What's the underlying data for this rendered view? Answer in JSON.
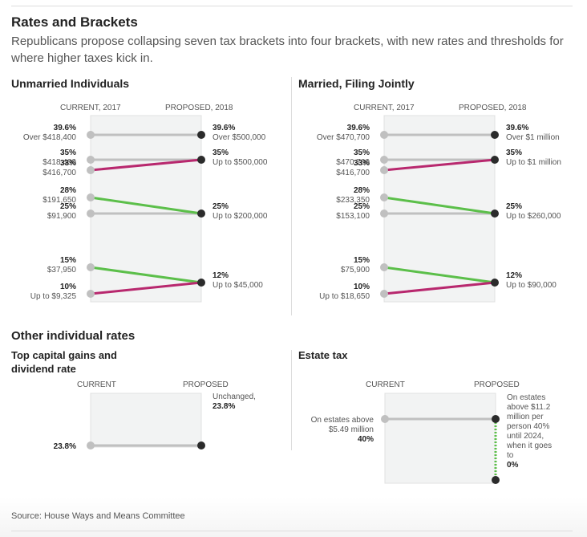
{
  "title": "Rates and Brackets",
  "dek": "Republicans propose collapsing seven tax brackets into four brackets, with new rates and thresholds for where higher taxes kick in.",
  "colors": {
    "up": "#b8286e",
    "down": "#5cbf4a",
    "flat": "#c0c0c0",
    "current_dot": "#c0c0c0",
    "proposed_dot": "#2b2b2b",
    "band": "#f2f3f3"
  },
  "chart_data": [
    {
      "type": "line",
      "title": "Unmarried Individuals",
      "col_current": "CURRENT, 2017",
      "col_proposed": "PROPOSED, 2018",
      "ylim": [
        8,
        42
      ],
      "current": [
        {
          "rate": 39.6,
          "rate_label": "39.6%",
          "threshold": "Over $418,400"
        },
        {
          "rate": 35,
          "rate_label": "35%",
          "threshold": "$418,400"
        },
        {
          "rate": 33,
          "rate_label": "33%",
          "threshold": "$416,700"
        },
        {
          "rate": 28,
          "rate_label": "28%",
          "threshold": "$191,650"
        },
        {
          "rate": 25,
          "rate_label": "25%",
          "threshold": "$91,900"
        },
        {
          "rate": 15,
          "rate_label": "15%",
          "threshold": "$37,950"
        },
        {
          "rate": 10,
          "rate_label": "10%",
          "threshold": "Up to $9,325"
        }
      ],
      "proposed": [
        {
          "rate": 39.6,
          "rate_label": "39.6%",
          "threshold": "Over $500,000"
        },
        {
          "rate": 35,
          "rate_label": "35%",
          "threshold": "Up to $500,000"
        },
        {
          "rate": 25,
          "rate_label": "25%",
          "threshold": "Up to $200,000"
        },
        {
          "rate": 12,
          "rate_label": "12%",
          "threshold": "Up to $45,000"
        }
      ],
      "links": [
        {
          "from": 39.6,
          "to": 39.6,
          "kind": "flat"
        },
        {
          "from": 35,
          "to": 35,
          "kind": "flat"
        },
        {
          "from": 33,
          "to": 35,
          "kind": "up"
        },
        {
          "from": 28,
          "to": 25,
          "kind": "down"
        },
        {
          "from": 25,
          "to": 25,
          "kind": "flat"
        },
        {
          "from": 15,
          "to": 12,
          "kind": "down"
        },
        {
          "from": 10,
          "to": 12,
          "kind": "up"
        }
      ]
    },
    {
      "type": "line",
      "title": "Married, Filing Jointly",
      "col_current": "CURRENT, 2017",
      "col_proposed": "PROPOSED, 2018",
      "ylim": [
        8,
        42
      ],
      "current": [
        {
          "rate": 39.6,
          "rate_label": "39.6%",
          "threshold": "Over $470,700"
        },
        {
          "rate": 35,
          "rate_label": "35%",
          "threshold": "$470,700"
        },
        {
          "rate": 33,
          "rate_label": "33%",
          "threshold": "$416,700"
        },
        {
          "rate": 28,
          "rate_label": "28%",
          "threshold": "$233,350"
        },
        {
          "rate": 25,
          "rate_label": "25%",
          "threshold": "$153,100"
        },
        {
          "rate": 15,
          "rate_label": "15%",
          "threshold": "$75,900"
        },
        {
          "rate": 10,
          "rate_label": "10%",
          "threshold": "Up to $18,650"
        }
      ],
      "proposed": [
        {
          "rate": 39.6,
          "rate_label": "39.6%",
          "threshold": "Over $1 million"
        },
        {
          "rate": 35,
          "rate_label": "35%",
          "threshold": "Up to $1 million"
        },
        {
          "rate": 25,
          "rate_label": "25%",
          "threshold": "Up to $260,000"
        },
        {
          "rate": 12,
          "rate_label": "12%",
          "threshold": "Up to $90,000"
        }
      ],
      "links": [
        {
          "from": 39.6,
          "to": 39.6,
          "kind": "flat"
        },
        {
          "from": 35,
          "to": 35,
          "kind": "flat"
        },
        {
          "from": 33,
          "to": 35,
          "kind": "up"
        },
        {
          "from": 28,
          "to": 25,
          "kind": "down"
        },
        {
          "from": 25,
          "to": 25,
          "kind": "flat"
        },
        {
          "from": 15,
          "to": 12,
          "kind": "down"
        },
        {
          "from": 10,
          "to": 12,
          "kind": "up"
        }
      ]
    },
    {
      "type": "line",
      "title": "Top capital gains and dividend rate",
      "col_current": "CURRENT",
      "col_proposed": "PROPOSED",
      "current_label": "23.8%",
      "current_value": 23.8,
      "proposed_value": 23.8,
      "proposed_note": "Unchanged,",
      "proposed_label": "23.8%"
    },
    {
      "type": "line",
      "title": "Estate tax",
      "col_current": "CURRENT",
      "col_proposed": "PROPOSED",
      "current_note": "On estates above $5.49 million",
      "current_label": "40%",
      "current_value": 40,
      "proposed_value_start": 40,
      "proposed_value_end": 0,
      "proposed_note": "On estates above $11.2 million per person 40% until 2024, when it goes to",
      "proposed_label": "0%"
    }
  ],
  "other_heading": "Other individual rates",
  "source": "Source: House Ways and Means Committee"
}
